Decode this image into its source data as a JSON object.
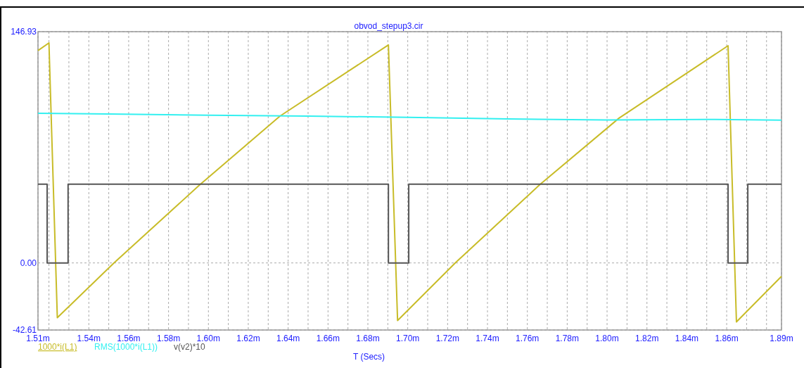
{
  "chart_data": {
    "type": "line",
    "title": "obvod_stepup3.cir",
    "xlabel": "T (Secs)",
    "xlim": [
      1.5145,
      1.8875
    ],
    "xticks": [
      {
        "value": 1.5145,
        "label": "1.51m"
      },
      {
        "value": 1.52,
        "label": null
      },
      {
        "value": 1.53,
        "label": null
      },
      {
        "value": 1.54,
        "label": "1.54m"
      },
      {
        "value": 1.55,
        "label": null
      },
      {
        "value": 1.56,
        "label": "1.56m"
      },
      {
        "value": 1.57,
        "label": null
      },
      {
        "value": 1.58,
        "label": "1.58m"
      },
      {
        "value": 1.59,
        "label": null
      },
      {
        "value": 1.6,
        "label": "1.60m"
      },
      {
        "value": 1.61,
        "label": null
      },
      {
        "value": 1.62,
        "label": "1.62m"
      },
      {
        "value": 1.63,
        "label": null
      },
      {
        "value": 1.64,
        "label": "1.64m"
      },
      {
        "value": 1.65,
        "label": null
      },
      {
        "value": 1.66,
        "label": "1.66m"
      },
      {
        "value": 1.67,
        "label": null
      },
      {
        "value": 1.68,
        "label": "1.68m"
      },
      {
        "value": 1.69,
        "label": null
      },
      {
        "value": 1.7,
        "label": "1.70m"
      },
      {
        "value": 1.71,
        "label": null
      },
      {
        "value": 1.72,
        "label": "1.72m"
      },
      {
        "value": 1.73,
        "label": null
      },
      {
        "value": 1.74,
        "label": "1.74m"
      },
      {
        "value": 1.75,
        "label": null
      },
      {
        "value": 1.76,
        "label": "1.76m"
      },
      {
        "value": 1.77,
        "label": null
      },
      {
        "value": 1.78,
        "label": "1.78m"
      },
      {
        "value": 1.79,
        "label": null
      },
      {
        "value": 1.8,
        "label": "1.80m"
      },
      {
        "value": 1.81,
        "label": null
      },
      {
        "value": 1.82,
        "label": "1.82m"
      },
      {
        "value": 1.83,
        "label": null
      },
      {
        "value": 1.84,
        "label": "1.84m"
      },
      {
        "value": 1.85,
        "label": null
      },
      {
        "value": 1.86,
        "label": "1.86m"
      },
      {
        "value": 1.87,
        "label": null
      },
      {
        "value": 1.88,
        "label": null
      },
      {
        "value": 1.8875,
        "label": "1.89m"
      }
    ],
    "ylim": [
      -42.61,
      146.93
    ],
    "yticks": [
      {
        "value": -42.61,
        "label": "-42.61"
      },
      {
        "value": 0,
        "label": "0.00"
      },
      {
        "value": 146.93,
        "label": "146.93"
      }
    ],
    "grid": true,
    "legend": "bottom",
    "marker": "none",
    "line_style": "solid",
    "series": [
      {
        "name": "1000*i(L1)",
        "color": "#c8bc28",
        "x": [
          1.5145,
          1.52,
          1.5242,
          1.5526,
          1.596,
          1.6359,
          1.6903,
          1.6949,
          1.7238,
          1.7665,
          1.806,
          1.8607,
          1.8649,
          1.8875
        ],
        "values": [
          134.9,
          139.8,
          -34.8,
          0,
          50,
          93.3,
          138.5,
          -36.6,
          0,
          50,
          92,
          138,
          -37.5,
          -8.5
        ]
      },
      {
        "name": "RMS(1000*i(L1))",
        "color": "#33f0f0",
        "x": [
          1.5145,
          1.55,
          1.6,
          1.65,
          1.7,
          1.75,
          1.8,
          1.85,
          1.8875
        ],
        "values": [
          95.1,
          94.6,
          93.8,
          93.3,
          92.5,
          91.5,
          90.8,
          91.2,
          90.7
        ]
      },
      {
        "name": "v(v2)*10",
        "color": "#555555",
        "x": [
          1.5145,
          1.5191,
          1.5191,
          1.5296,
          1.5296,
          1.6903,
          1.6903,
          1.7005,
          1.7005,
          1.8607,
          1.8607,
          1.8706,
          1.8706,
          1.8875
        ],
        "values": [
          50,
          50,
          0,
          0,
          50,
          50,
          0,
          0,
          50,
          50,
          0,
          0,
          50,
          50
        ]
      }
    ]
  }
}
